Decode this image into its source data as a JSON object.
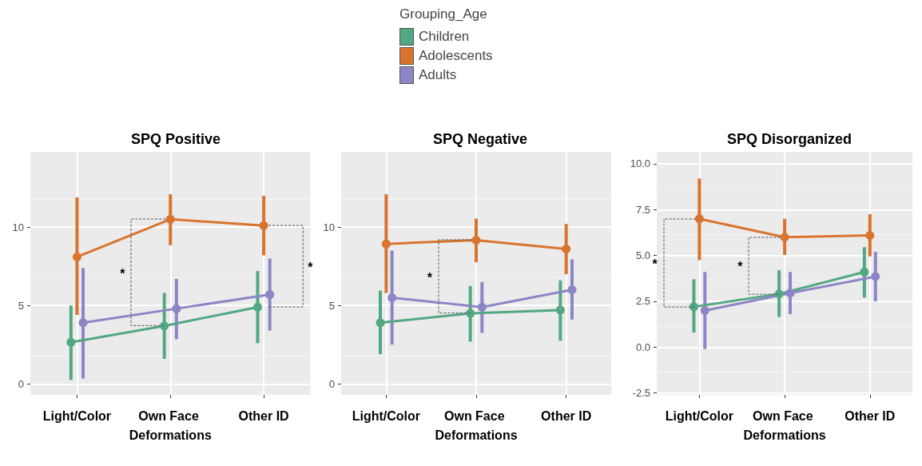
{
  "chart_data": [
    {
      "type": "line",
      "title": "SPQ Positive",
      "legend_title": "Grouping_Age",
      "legend": "top",
      "grid": true,
      "marker": "circle",
      "line_style": "solid",
      "categories": [
        "Light/Color",
        "Own Face Deformations",
        "Other ID"
      ],
      "ylim": [
        -0.7,
        14.8
      ],
      "yticks": [
        0,
        5,
        10
      ],
      "series": [
        {
          "name": "Children",
          "color": "#52a882",
          "values": [
            2.65,
            3.7,
            4.9
          ],
          "errors": [
            [
              0.25,
              5.0
            ],
            [
              1.6,
              5.8
            ],
            [
              2.6,
              7.2
            ]
          ]
        },
        {
          "name": "Adolescents",
          "color": "#d9742f",
          "values": [
            8.1,
            10.5,
            10.1
          ],
          "errors": [
            [
              4.4,
              11.9
            ],
            [
              8.85,
              12.1
            ],
            [
              8.2,
              12.0
            ]
          ]
        },
        {
          "name": "Adults",
          "color": "#8d86c6",
          "values": [
            3.9,
            4.8,
            5.7
          ],
          "errors": [
            [
              0.35,
              7.4
            ],
            [
              2.85,
              6.7
            ],
            [
              3.4,
              8.0
            ]
          ]
        }
      ],
      "annotations": [
        "*",
        "*"
      ]
    },
    {
      "type": "line",
      "title": "SPQ Negative",
      "grid": true,
      "marker": "circle",
      "line_style": "solid",
      "categories": [
        "Light/Color",
        "Own Face Deformations",
        "Other ID"
      ],
      "ylim": [
        -0.7,
        14.8
      ],
      "yticks": [
        0,
        5,
        10
      ],
      "series": [
        {
          "color": "#52a882",
          "values": [
            3.9,
            4.5,
            4.7
          ],
          "errors": [
            [
              1.9,
              5.95
            ],
            [
              2.7,
              6.25
            ],
            [
              2.75,
              6.6
            ]
          ]
        },
        {
          "color": "#d9742f",
          "values": [
            8.93,
            9.17,
            8.6
          ],
          "errors": [
            [
              5.8,
              12.1
            ],
            [
              7.76,
              10.55
            ],
            [
              7.0,
              10.2
            ]
          ]
        },
        {
          "color": "#8d86c6",
          "values": [
            5.5,
            4.9,
            6.0
          ],
          "errors": [
            [
              2.5,
              8.5
            ],
            [
              3.25,
              6.5
            ],
            [
              4.1,
              7.95
            ]
          ]
        }
      ],
      "annotations": [
        "*"
      ]
    },
    {
      "type": "line",
      "title": "SPQ Disorganized",
      "grid": true,
      "marker": "circle",
      "line_style": "solid",
      "categories": [
        "Light/Color",
        "Own Face Deformations",
        "Other ID"
      ],
      "ylim": [
        -2.6,
        10.65
      ],
      "yticks": [
        {
          "value": -2.5,
          "label": "-2.5"
        },
        {
          "value": 0,
          "label": "0.0"
        },
        {
          "value": 2.5,
          "label": "2.5"
        },
        {
          "value": 5,
          "label": "5.0"
        },
        {
          "value": 7.5,
          "label": "7.5"
        },
        {
          "value": 10,
          "label": "10.0"
        }
      ],
      "series": [
        {
          "color": "#52a882",
          "values": [
            2.2,
            2.9,
            4.1
          ],
          "errors": [
            [
              0.8,
              3.7
            ],
            [
              1.65,
              4.2
            ],
            [
              2.7,
              5.45
            ]
          ]
        },
        {
          "color": "#d9742f",
          "values": [
            7.0,
            6.0,
            6.1
          ],
          "errors": [
            [
              4.75,
              9.2
            ],
            [
              5.03,
              7.0
            ],
            [
              4.95,
              7.25
            ]
          ]
        },
        {
          "color": "#8d86c6",
          "values": [
            2.0,
            2.95,
            3.85
          ],
          "errors": [
            [
              -0.1,
              4.1
            ],
            [
              1.8,
              4.1
            ],
            [
              2.5,
              5.2
            ]
          ]
        }
      ],
      "annotations": [
        "*",
        "*"
      ]
    }
  ]
}
